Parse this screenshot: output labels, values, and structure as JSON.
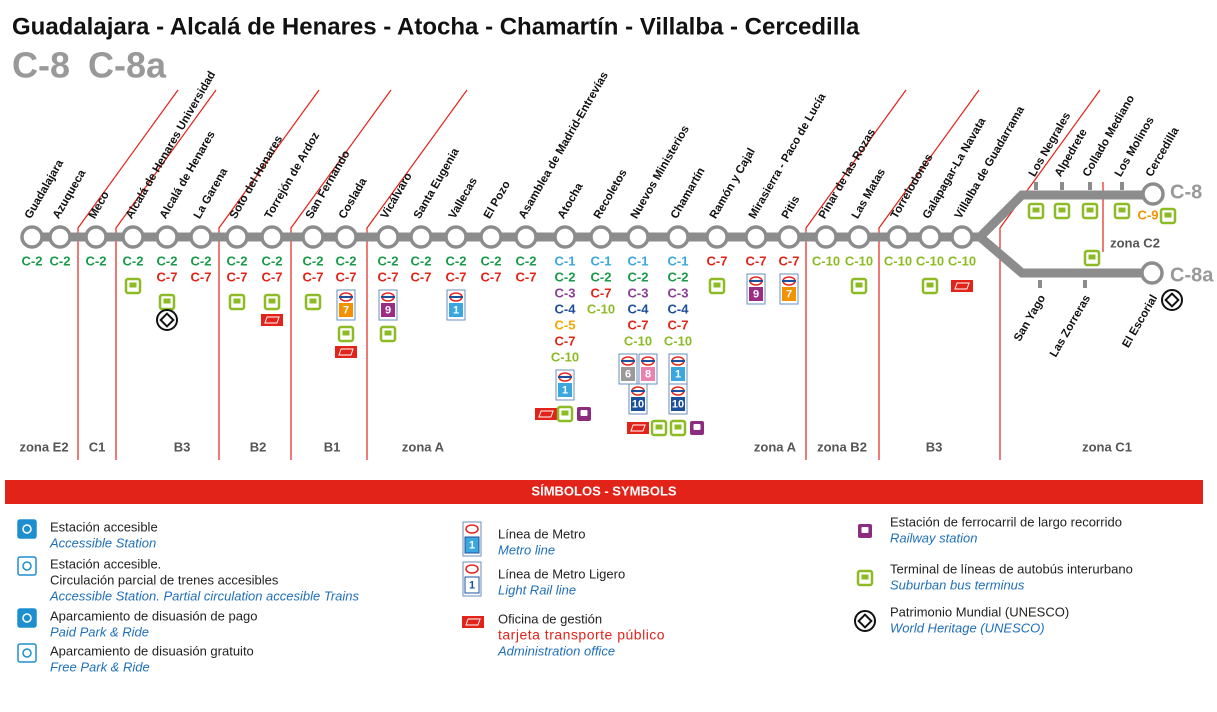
{
  "header": {
    "title": "Guadalajara - Alcalá de Henares - Atocha - Chamartín - Villalba - Cercedilla",
    "lines": [
      "C-8",
      "C-8a"
    ]
  },
  "line_colors": {
    "C-1": "#3aa8de",
    "C-2": "#1a9a48",
    "C-3": "#8b3f98",
    "C-4": "#1c4f9c",
    "C-5": "#f2a900",
    "C-7": "#e2231a",
    "C-9": "#f39200",
    "C-10": "#8cbb26"
  },
  "metro_colors": {
    "1": "#3aa8de",
    "6": "#9a9a9a",
    "7": "#f39200",
    "8": "#ea82b1",
    "9": "#9b2c86",
    "10": "#1c4f9c"
  },
  "stations": [
    {
      "name": "Guadalajara",
      "lines": [
        "C-2"
      ]
    },
    {
      "name": "Azuqueca",
      "lines": [
        "C-2"
      ]
    },
    {
      "name": "Meco",
      "lines": [
        "C-2"
      ]
    },
    {
      "name": "Alcalá de Henares Universidad",
      "lines": [
        "C-2"
      ]
    },
    {
      "name": "Alcalá de Henares",
      "lines": [
        "C-2",
        "C-7"
      ]
    },
    {
      "name": "La Garena",
      "lines": [
        "C-2",
        "C-7"
      ]
    },
    {
      "name": "Soto del Henares",
      "lines": [
        "C-2",
        "C-7"
      ]
    },
    {
      "name": "Torrejón de Ardoz",
      "lines": [
        "C-2",
        "C-7"
      ]
    },
    {
      "name": "San Fernando",
      "lines": [
        "C-2",
        "C-7"
      ]
    },
    {
      "name": "Coslada",
      "lines": [
        "C-2",
        "C-7"
      ],
      "metro": [
        "7"
      ]
    },
    {
      "name": "Vicálvaro",
      "lines": [
        "C-2",
        "C-7"
      ],
      "metro": [
        "9"
      ]
    },
    {
      "name": "Santa Eugenia",
      "lines": [
        "C-2",
        "C-7"
      ]
    },
    {
      "name": "Vallecas",
      "lines": [
        "C-2",
        "C-7"
      ],
      "metro": [
        "1"
      ]
    },
    {
      "name": "El Pozo",
      "lines": [
        "C-2",
        "C-7"
      ]
    },
    {
      "name": "Asamblea de Madrid-Entrevías",
      "lines": [
        "C-2",
        "C-7"
      ]
    },
    {
      "name": "Atocha",
      "lines": [
        "C-1",
        "C-2",
        "C-3",
        "C-4",
        "C-5",
        "C-7",
        "C-10"
      ],
      "metro": [
        "1"
      ]
    },
    {
      "name": "Recoletos",
      "lines": [
        "C-1",
        "C-2",
        "C-7",
        "C-10"
      ]
    },
    {
      "name": "Nuevos Ministerios",
      "lines": [
        "C-1",
        "C-2",
        "C-3",
        "C-4",
        "C-7",
        "C-10"
      ],
      "metro": [
        "6",
        "8",
        "10"
      ]
    },
    {
      "name": "Chamartín",
      "lines": [
        "C-1",
        "C-2",
        "C-3",
        "C-4",
        "C-7",
        "C-10"
      ],
      "metro": [
        "1",
        "10"
      ]
    },
    {
      "name": "Ramón y Cajal",
      "lines": [
        "C-7"
      ]
    },
    {
      "name": "Mirasierra - Paco de Lucía",
      "lines": [
        "C-7"
      ],
      "metro": [
        "9"
      ]
    },
    {
      "name": "Pitis",
      "lines": [
        "C-7"
      ],
      "metro": [
        "7"
      ]
    },
    {
      "name": "Pinar de las Rozas",
      "lines": [
        "C-10"
      ]
    },
    {
      "name": "Las Matas",
      "lines": [
        "C-10"
      ]
    },
    {
      "name": "Torrelodones",
      "lines": [
        "C-10"
      ]
    },
    {
      "name": "Galapagar-La Navata",
      "lines": [
        "C-10"
      ]
    },
    {
      "name": "Villalba de Guadarrama",
      "lines": [
        "C-10"
      ]
    }
  ],
  "upper_branch": [
    {
      "name": "Los Negrales"
    },
    {
      "name": "Alpedrete"
    },
    {
      "name": "Collado Mediano"
    },
    {
      "name": "Los Molinos"
    },
    {
      "name": "Cercedilla",
      "lines": [
        "C-9"
      ]
    }
  ],
  "lower_branch": [
    {
      "name": "San Yago"
    },
    {
      "name": "Las Zorreras"
    },
    {
      "name": "El Escorial"
    }
  ],
  "zones": [
    "zona E2",
    "C1",
    "B3",
    "B2",
    "B1",
    "zona A",
    "zona A",
    "zona B2",
    "B3",
    "zona C1",
    "zona C2"
  ],
  "legend": {
    "title": "SÍMBOLOS - SYMBOLS",
    "items": [
      {
        "es": [
          "Estación accesible"
        ],
        "en": "Accessible Station"
      },
      {
        "es": [
          "Estación accesible.",
          "Circulación parcial de trenes accesibles"
        ],
        "en": "Accessible Station. Partial circulation accesible Trains"
      },
      {
        "es": [
          "Aparcamiento de disuasión de pago"
        ],
        "en": "Paid Park & Ride"
      },
      {
        "es": [
          "Aparcamiento de disuasión gratuito"
        ],
        "en": "Free Park & Ride"
      },
      {
        "es": [
          "Línea de Metro"
        ],
        "en": "Metro line",
        "badge": "1"
      },
      {
        "es": [
          "Línea de Metro Ligero"
        ],
        "en": "Light Rail line",
        "badge": "1"
      },
      {
        "es": [
          "Oficina de gestión"
        ],
        "brand": "tarjeta transporte público",
        "en": "Administration office"
      },
      {
        "es": [
          "Estación de ferrocarril de largo recorrido"
        ],
        "en": "Railway station"
      },
      {
        "es": [
          "Terminal de líneas de autobús interurbano"
        ],
        "en": "Suburban bus terminus"
      },
      {
        "es": [
          "Patrimonio Mundial (UNESCO)"
        ],
        "en": "World Heritage (UNESCO)"
      }
    ]
  }
}
